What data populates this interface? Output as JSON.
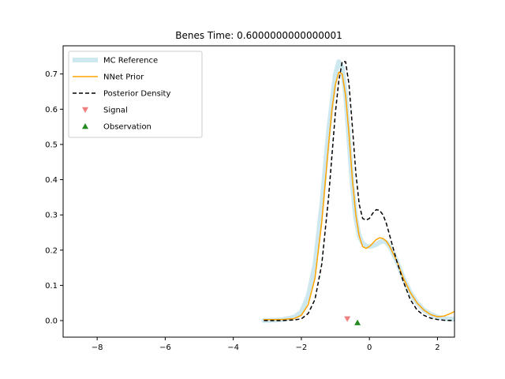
{
  "chart_data": {
    "type": "line",
    "title": "Benes Time: 0.6000000000000001",
    "xlabel": "",
    "ylabel": "",
    "xlim": [
      -9.0,
      2.5
    ],
    "ylim": [
      -0.047,
      0.78
    ],
    "xticks": [
      -8,
      -6,
      -4,
      -2,
      0,
      2
    ],
    "xtick_labels": [
      "−8",
      "−6",
      "−4",
      "−2",
      "0",
      "2"
    ],
    "yticks": [
      0.0,
      0.1,
      0.2,
      0.3,
      0.4,
      0.5,
      0.6,
      0.7
    ],
    "ytick_labels": [
      "0.0",
      "0.1",
      "0.2",
      "0.3",
      "0.4",
      "0.5",
      "0.6",
      "0.7"
    ],
    "grid": false,
    "legend_placement": "upper-left",
    "series": [
      {
        "name": "MC Reference",
        "style": "thick-line",
        "color": "#add8e6",
        "x": [
          -3.1,
          -2.6,
          -2.2,
          -2.0,
          -1.8,
          -1.6,
          -1.4,
          -1.2,
          -1.0,
          -0.9,
          -0.8,
          -0.7,
          -0.6,
          -0.5,
          -0.4,
          -0.3,
          -0.2,
          -0.1,
          0.0,
          0.1,
          0.2,
          0.3,
          0.4,
          0.5,
          0.6,
          0.8,
          1.0,
          1.2,
          1.4,
          1.6,
          1.8,
          2.0,
          2.2,
          2.5
        ],
        "y": [
          0.0,
          0.002,
          0.01,
          0.025,
          0.07,
          0.16,
          0.33,
          0.54,
          0.7,
          0.735,
          0.72,
          0.64,
          0.51,
          0.38,
          0.29,
          0.24,
          0.22,
          0.212,
          0.21,
          0.212,
          0.216,
          0.222,
          0.226,
          0.222,
          0.21,
          0.17,
          0.12,
          0.08,
          0.05,
          0.03,
          0.018,
          0.01,
          0.006,
          0.004
        ]
      },
      {
        "name": "NNet Prior",
        "style": "line",
        "color": "#ffa500",
        "x": [
          -3.1,
          -2.6,
          -2.2,
          -2.0,
          -1.8,
          -1.6,
          -1.4,
          -1.2,
          -1.1,
          -1.0,
          -0.9,
          -0.8,
          -0.7,
          -0.6,
          -0.5,
          -0.4,
          -0.3,
          -0.2,
          -0.1,
          0.0,
          0.1,
          0.2,
          0.3,
          0.4,
          0.5,
          0.6,
          0.8,
          1.0,
          1.2,
          1.4,
          1.6,
          1.8,
          2.0,
          2.2,
          2.4,
          2.5
        ],
        "y": [
          0.003,
          0.003,
          0.006,
          0.015,
          0.045,
          0.12,
          0.28,
          0.5,
          0.6,
          0.67,
          0.705,
          0.7,
          0.64,
          0.53,
          0.4,
          0.3,
          0.24,
          0.21,
          0.205,
          0.21,
          0.22,
          0.23,
          0.235,
          0.233,
          0.225,
          0.21,
          0.17,
          0.12,
          0.08,
          0.05,
          0.03,
          0.017,
          0.011,
          0.013,
          0.021,
          0.026
        ]
      },
      {
        "name": "Posterior Density",
        "style": "dashed",
        "color": "#000000",
        "x": [
          -3.1,
          -2.6,
          -2.2,
          -2.0,
          -1.8,
          -1.6,
          -1.4,
          -1.2,
          -1.1,
          -1.0,
          -0.9,
          -0.8,
          -0.7,
          -0.6,
          -0.5,
          -0.4,
          -0.3,
          -0.2,
          -0.1,
          0.0,
          0.1,
          0.2,
          0.3,
          0.4,
          0.5,
          0.6,
          0.8,
          1.0,
          1.2,
          1.4,
          1.6,
          1.8,
          2.0,
          2.2,
          2.5
        ],
        "y": [
          0.0,
          0.0,
          0.002,
          0.005,
          0.02,
          0.06,
          0.16,
          0.35,
          0.47,
          0.59,
          0.68,
          0.735,
          0.735,
          0.67,
          0.55,
          0.42,
          0.33,
          0.29,
          0.285,
          0.29,
          0.305,
          0.315,
          0.313,
          0.3,
          0.275,
          0.24,
          0.17,
          0.11,
          0.06,
          0.03,
          0.015,
          0.007,
          0.003,
          0.001,
          0.0
        ]
      }
    ],
    "markers": [
      {
        "name": "Signal",
        "shape": "triangle-down",
        "color": "#f08080",
        "x": -0.65,
        "y": 0.005
      },
      {
        "name": "Observation",
        "shape": "triangle-up",
        "color": "#228b22",
        "x": -0.35,
        "y": -0.006
      }
    ]
  }
}
